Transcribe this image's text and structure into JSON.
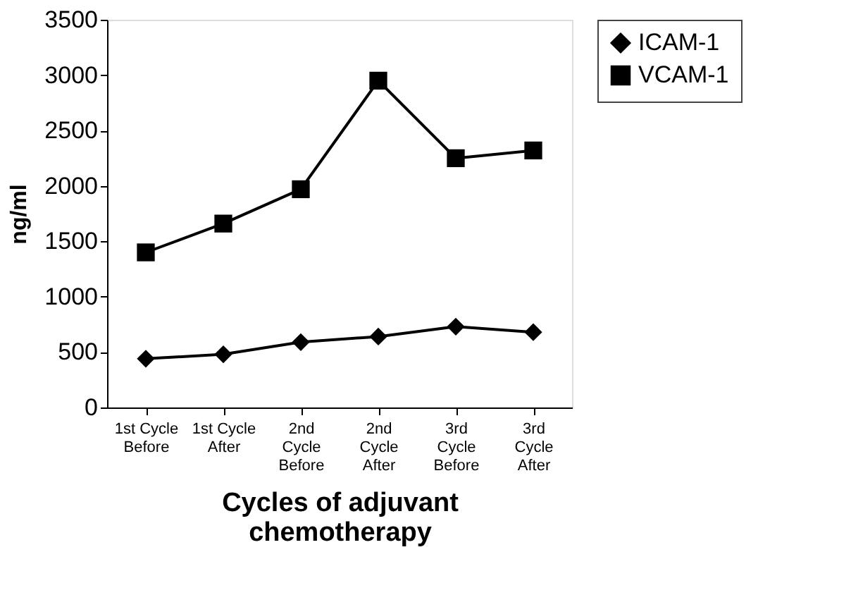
{
  "chart_data": {
    "type": "line",
    "xlabel": "Cycles of adjuvant\nchemotherapy",
    "ylabel": "ng/ml",
    "categories": [
      "1st Cycle\nBefore",
      "1st Cycle\nAfter",
      "2nd\nCycle\nBefore",
      "2nd\nCycle\nAfter",
      "3rd\nCycle\nBefore",
      "3rd\nCycle\nAfter"
    ],
    "series": [
      {
        "name": "ICAM-1",
        "color": "#000000",
        "marker": "diamond",
        "values": [
          440,
          480,
          590,
          640,
          730,
          680
        ]
      },
      {
        "name": "VCAM-1",
        "color": "#000000",
        "marker": "square",
        "values": [
          1400,
          1660,
          1970,
          2950,
          2250,
          2320
        ]
      }
    ],
    "ylim": [
      0,
      3500
    ],
    "yticks": [
      0,
      500,
      1000,
      1500,
      2000,
      2500,
      3000,
      3500
    ],
    "grid": false,
    "legend": "right",
    "line_style": "solid"
  }
}
